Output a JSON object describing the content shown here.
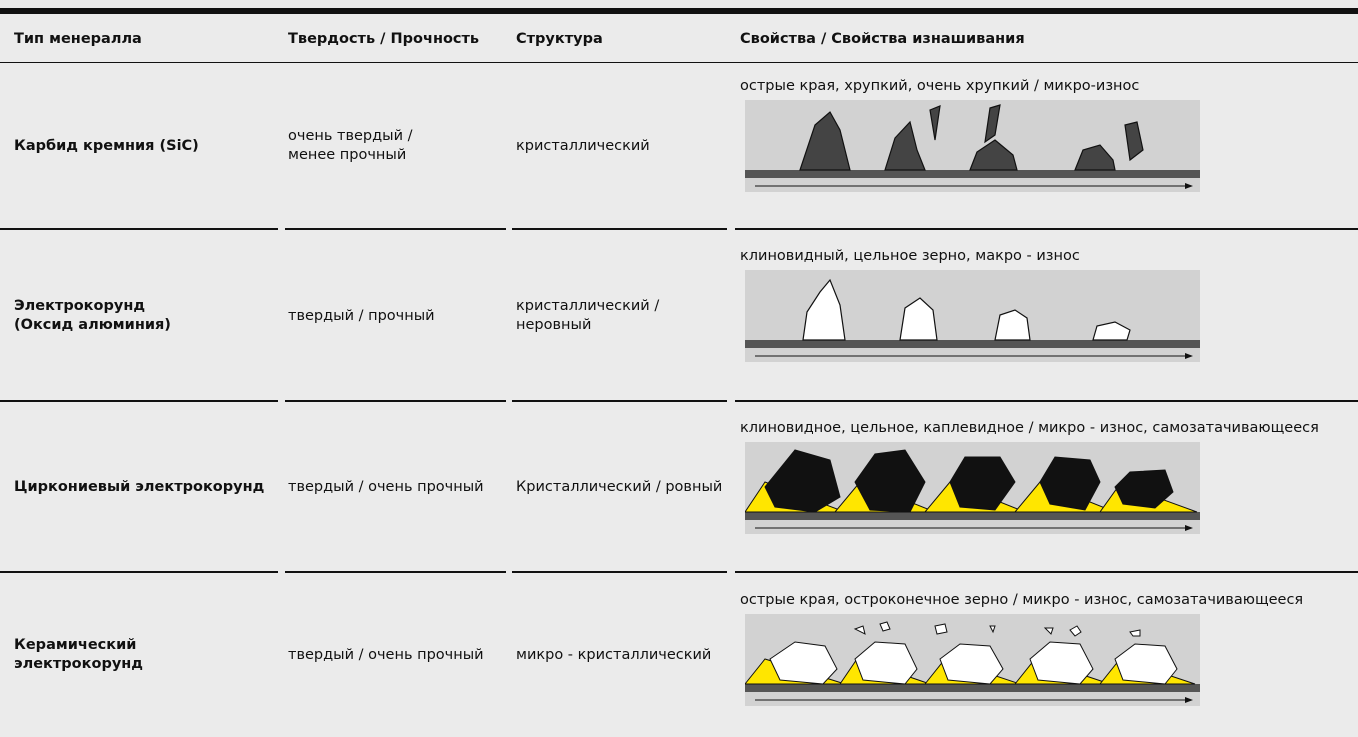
{
  "table": {
    "header": [
      "Тип менералла",
      "Твердость / Прочность",
      "Структура",
      "Свойства / Свойства изнашивания"
    ],
    "rows": [
      [
        "Карбид кремния (SiC)",
        "очень твердый /\nменее прочный",
        "кристаллический",
        "острые края, хрупкий, очень хрупкий / микро-износ"
      ],
      [
        "Электрокорунд\n(Оксид алюминия)",
        "твердый / прочный",
        "кристаллический /\nнеровный",
        "клиновидный, цельное зерно, макро - износ"
      ],
      [
        "Циркониевый электрокорунд",
        "твердый / очень прочный",
        "Кристаллический / ровный",
        "клиновидное, цельное, каплевидное / микро - износ, самозатачивающееся"
      ],
      [
        "Керамический\nэлектрокорунд",
        "твердый / очень прочный",
        "микро - кристаллический",
        "острые края, остроконечное зерно / микро - износ, самозатачивающееся"
      ]
    ]
  }
}
